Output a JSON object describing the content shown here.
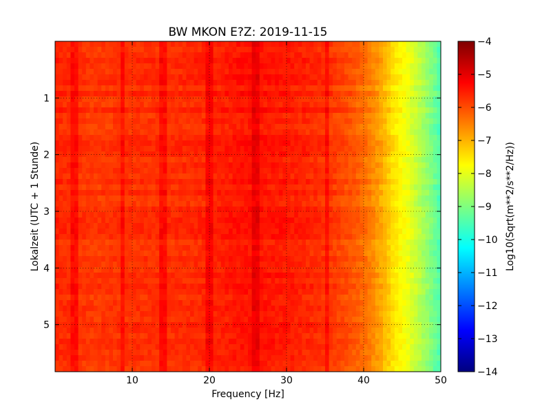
{
  "chart_data": {
    "type": "heatmap",
    "title": "BW MKON E?Z: 2019-11-15",
    "xlabel": "Frequency [Hz]",
    "ylabel": "Lokalzeit (UTC + 1 Stunde)",
    "xlim": [
      0,
      50
    ],
    "ylim": [
      5.83,
      0
    ],
    "x_ticks": [
      10,
      20,
      30,
      40,
      50
    ],
    "x_tick_labels": [
      "10",
      "20",
      "30",
      "40",
      "50"
    ],
    "y_ticks": [
      1,
      2,
      3,
      4,
      5
    ],
    "y_tick_labels": [
      "1",
      "2",
      "3",
      "4",
      "5"
    ],
    "grid": true,
    "colormap": "jet",
    "colorbar": {
      "label": "Log10(Sqrt(m**2/s**2/Hz))",
      "range": [
        -14,
        -4
      ],
      "ticks": [
        -4,
        -5,
        -6,
        -7,
        -8,
        -9,
        -10,
        -11,
        -12,
        -13,
        -14
      ],
      "tick_labels": [
        "−4",
        "−5",
        "−6",
        "−7",
        "−8",
        "−9",
        "−10",
        "−11",
        "−12",
        "−13",
        "−14"
      ]
    },
    "frequency_profile": {
      "frequency_hz": [
        0,
        5,
        10,
        15,
        20,
        25,
        30,
        35,
        38,
        40,
        42,
        44,
        46,
        48,
        50
      ],
      "mean_log10_amplitude": [
        -5.6,
        -5.8,
        -5.7,
        -5.7,
        -5.6,
        -5.4,
        -5.5,
        -5.7,
        -6.0,
        -6.3,
        -6.8,
        -7.5,
        -8.0,
        -8.7,
        -9.5
      ]
    },
    "spectral_lines_hz": [
      2.5,
      8.8,
      14,
      20,
      26,
      35.3
    ]
  }
}
